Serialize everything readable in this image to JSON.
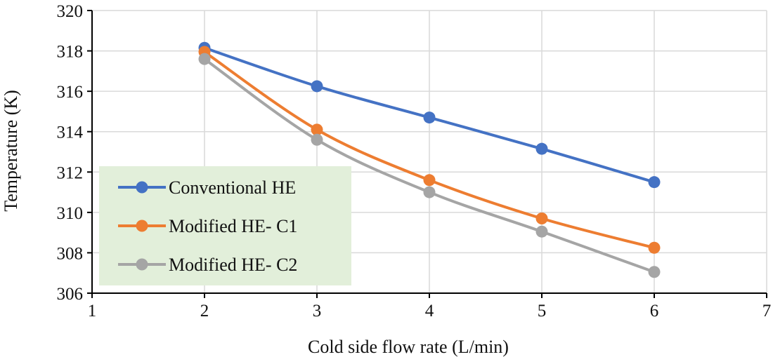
{
  "chart_data": {
    "type": "line",
    "title": "",
    "xlabel": "Cold side flow rate (L/min)",
    "ylabel": "Temperature (K)",
    "xlim": [
      1,
      7
    ],
    "ylim": [
      306,
      320
    ],
    "xticks": [
      1,
      2,
      3,
      4,
      5,
      6,
      7
    ],
    "yticks": [
      306,
      308,
      310,
      312,
      314,
      316,
      318,
      320
    ],
    "grid": true,
    "smooth": true,
    "legend_position": "bottom-left",
    "x": [
      2,
      3,
      4,
      5,
      6
    ],
    "series": [
      {
        "name": "Conventional HE",
        "color": "#4472C4",
        "values": [
          318.15,
          316.25,
          314.7,
          313.15,
          311.5
        ]
      },
      {
        "name": "Modified HE- C1",
        "color": "#ED7D31",
        "values": [
          317.95,
          314.1,
          311.6,
          309.7,
          308.25
        ]
      },
      {
        "name": "Modified HE- C2",
        "color": "#A5A5A5",
        "values": [
          317.6,
          313.6,
          311.0,
          309.05,
          307.05
        ]
      }
    ]
  },
  "colors": {
    "grid": "#D9D9D9",
    "axis": "#000000",
    "legend_bg": "#E2EFDA"
  }
}
